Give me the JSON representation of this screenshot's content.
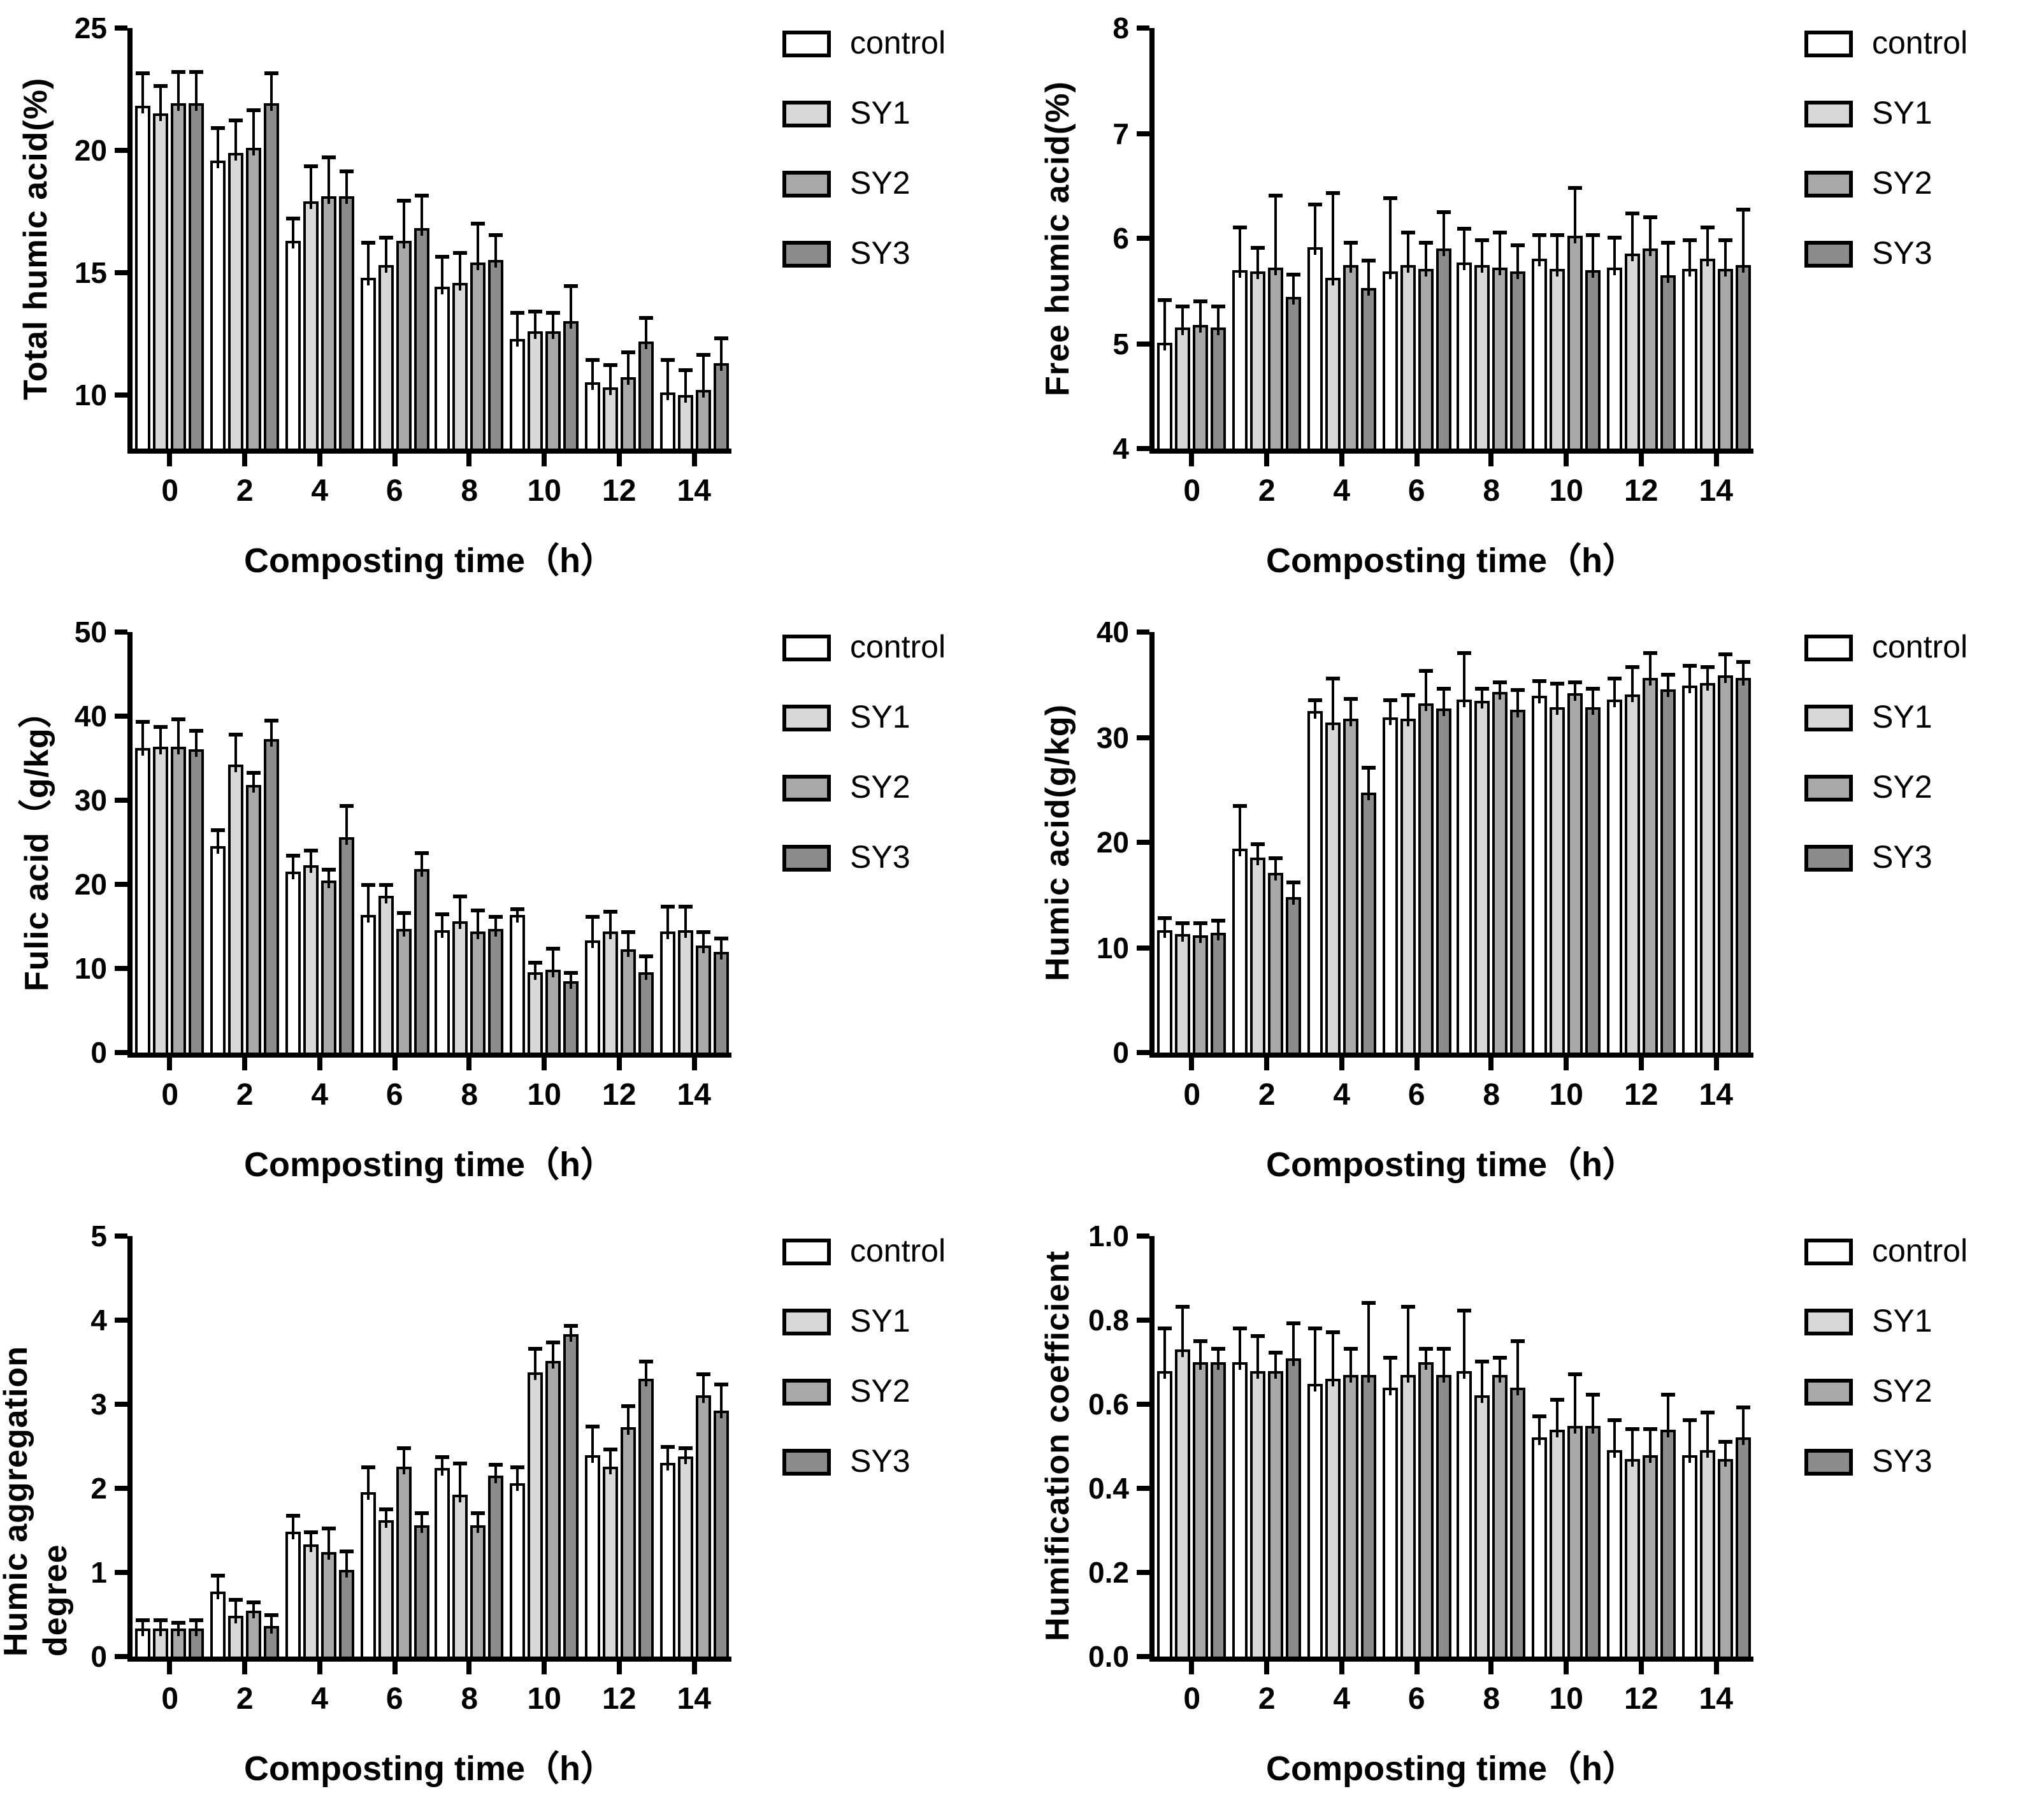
{
  "figure": {
    "background": "#ffffff",
    "xlabel": "Composting time（h）"
  },
  "legend": {
    "items": [
      "control",
      "SY1",
      "SY2",
      "SY3"
    ]
  },
  "series_colors": {
    "control": "#ffffff",
    "SY1": "#d8d8d8",
    "SY2": "#a9a9a9",
    "SY3": "#8c8c8c"
  },
  "chart_data": [
    {
      "type": "bar",
      "title": "",
      "ylabel": "Total humic acid(%)",
      "xlabel": "Composting time（h）",
      "categories": [
        "0",
        "2",
        "4",
        "6",
        "8",
        "10",
        "12",
        "14"
      ],
      "ylim": [
        7.8,
        25
      ],
      "yticks": [
        10,
        15,
        20,
        25
      ],
      "ytick_labels": [
        "10",
        "15",
        "20",
        "25"
      ],
      "grid": false,
      "legend_position": "right-top",
      "series": [
        {
          "name": "control",
          "color": "#ffffff",
          "values": [
            21.8,
            19.6,
            16.3,
            14.8,
            14.4,
            12.3,
            10.5,
            10.1
          ],
          "errors": [
            1.3,
            1.3,
            0.9,
            1.4,
            1.2,
            1.0,
            0.9,
            1.3
          ]
        },
        {
          "name": "SY1",
          "color": "#d8d8d8",
          "values": [
            21.5,
            19.9,
            17.9,
            15.3,
            14.6,
            12.6,
            10.3,
            10.0
          ],
          "errors": [
            1.1,
            1.3,
            1.4,
            1.1,
            1.2,
            0.8,
            0.9,
            1.0
          ]
        },
        {
          "name": "SY2",
          "color": "#a9a9a9",
          "values": [
            21.9,
            20.1,
            18.1,
            16.3,
            15.4,
            12.6,
            10.7,
            10.2
          ],
          "errors": [
            1.3,
            1.5,
            1.6,
            1.6,
            1.6,
            0.7,
            1.0,
            1.4
          ]
        },
        {
          "name": "SY3",
          "color": "#8c8c8c",
          "values": [
            21.9,
            21.9,
            18.1,
            16.8,
            15.5,
            13.0,
            12.2,
            11.3
          ],
          "errors": [
            1.3,
            1.2,
            1.0,
            1.3,
            1.0,
            1.4,
            0.9,
            1.0
          ]
        }
      ]
    },
    {
      "type": "bar",
      "title": "",
      "ylabel": "Free humic acid(%)",
      "xlabel": "Composting time（h）",
      "categories": [
        "0",
        "2",
        "4",
        "6",
        "8",
        "10",
        "12",
        "14"
      ],
      "ylim": [
        4,
        8
      ],
      "yticks": [
        4,
        5,
        6,
        7,
        8
      ],
      "ytick_labels": [
        "4",
        "5",
        "6",
        "7",
        "8"
      ],
      "grid": false,
      "legend_position": "right-top",
      "series": [
        {
          "name": "control",
          "color": "#ffffff",
          "values": [
            5.01,
            5.7,
            5.91,
            5.68,
            5.77,
            5.81,
            5.72,
            5.71
          ],
          "errors": [
            0.4,
            0.4,
            0.4,
            0.7,
            0.31,
            0.22,
            0.28,
            0.27
          ]
        },
        {
          "name": "SY1",
          "color": "#d8d8d8",
          "values": [
            5.15,
            5.68,
            5.63,
            5.74,
            5.74,
            5.71,
            5.86,
            5.81
          ],
          "errors": [
            0.2,
            0.22,
            0.79,
            0.31,
            0.24,
            0.31,
            0.37,
            0.29
          ]
        },
        {
          "name": "SY2",
          "color": "#a9a9a9",
          "values": [
            5.18,
            5.72,
            5.74,
            5.71,
            5.72,
            6.02,
            5.9,
            5.71
          ],
          "errors": [
            0.22,
            0.68,
            0.21,
            0.24,
            0.33,
            0.45,
            0.3,
            0.27
          ]
        },
        {
          "name": "SY3",
          "color": "#8c8c8c",
          "values": [
            5.15,
            5.44,
            5.53,
            5.9,
            5.68,
            5.7,
            5.65,
            5.74
          ],
          "errors": [
            0.2,
            0.21,
            0.25,
            0.34,
            0.25,
            0.32,
            0.3,
            0.53
          ]
        }
      ]
    },
    {
      "type": "bar",
      "title": "",
      "ylabel": "Fulic acid（g/kg）",
      "xlabel": "Composting time（h）",
      "categories": [
        "0",
        "2",
        "4",
        "6",
        "8",
        "10",
        "12",
        "14"
      ],
      "ylim": [
        0,
        50
      ],
      "yticks": [
        0,
        10,
        20,
        30,
        40,
        50
      ],
      "ytick_labels": [
        "0",
        "10",
        "20",
        "30",
        "40",
        "50"
      ],
      "grid": false,
      "legend_position": "right-top",
      "series": [
        {
          "name": "control",
          "color": "#ffffff",
          "values": [
            36.2,
            24.6,
            21.5,
            16.3,
            14.5,
            16.3,
            13.4,
            14.4
          ],
          "errors": [
            3.1,
            1.7,
            1.8,
            3.6,
            1.8,
            0.7,
            2.6,
            2.8
          ]
        },
        {
          "name": "SY1",
          "color": "#d8d8d8",
          "values": [
            36.4,
            34.3,
            22.2,
            18.6,
            15.6,
            9.6,
            14.4,
            14.6
          ],
          "errors": [
            2.3,
            3.5,
            1.8,
            1.2,
            2.9,
            1.0,
            2.3,
            2.7
          ]
        },
        {
          "name": "SY2",
          "color": "#a9a9a9",
          "values": [
            36.4,
            31.8,
            20.4,
            14.7,
            14.4,
            9.9,
            12.2,
            12.7
          ],
          "errors": [
            3.1,
            1.4,
            1.2,
            1.8,
            2.4,
            2.3,
            2.0,
            1.5
          ]
        },
        {
          "name": "SY3",
          "color": "#8c8c8c",
          "values": [
            36.0,
            37.2,
            25.6,
            21.8,
            14.7,
            8.5,
            9.5,
            12.0
          ],
          "errors": [
            2.2,
            2.2,
            3.6,
            1.9,
            1.3,
            0.9,
            1.9,
            1.5
          ]
        }
      ]
    },
    {
      "type": "bar",
      "title": "",
      "ylabel": "Humic acid(g/kg)",
      "xlabel": "Composting time（h）",
      "categories": [
        "0",
        "2",
        "4",
        "6",
        "8",
        "10",
        "12",
        "14"
      ],
      "ylim": [
        0,
        40
      ],
      "yticks": [
        0,
        10,
        20,
        30,
        40
      ],
      "ytick_labels": [
        "0",
        "10",
        "20",
        "30",
        "40"
      ],
      "grid": false,
      "legend_position": "right-top",
      "series": [
        {
          "name": "control",
          "color": "#ffffff",
          "values": [
            11.6,
            19.4,
            32.5,
            31.9,
            33.6,
            33.9,
            33.6,
            34.9
          ],
          "errors": [
            1.1,
            4.0,
            0.9,
            1.6,
            4.3,
            1.4,
            1.9,
            1.8
          ]
        },
        {
          "name": "SY1",
          "color": "#d8d8d8",
          "values": [
            11.3,
            18.6,
            31.4,
            31.8,
            33.4,
            32.9,
            34.1,
            35.1
          ],
          "errors": [
            1.0,
            1.2,
            4.1,
            2.1,
            1.2,
            2.1,
            2.5,
            1.5
          ]
        },
        {
          "name": "SY2",
          "color": "#a9a9a9",
          "values": [
            11.1,
            17.1,
            31.7,
            33.2,
            34.3,
            34.2,
            35.6,
            35.9
          ],
          "errors": [
            1.1,
            1.3,
            1.9,
            3.1,
            0.8,
            1.0,
            2.3,
            1.9
          ]
        },
        {
          "name": "SY3",
          "color": "#8c8c8c",
          "values": [
            11.4,
            14.8,
            24.7,
            32.7,
            32.6,
            32.9,
            34.5,
            35.6
          ],
          "errors": [
            1.1,
            1.3,
            2.3,
            1.9,
            1.8,
            1.6,
            1.4,
            1.5
          ]
        }
      ]
    },
    {
      "type": "bar",
      "title": "",
      "ylabel": "Humic aggregation degree",
      "xlabel": "Composting time（h）",
      "categories": [
        "0",
        "2",
        "4",
        "6",
        "8",
        "10",
        "12",
        "14"
      ],
      "ylim": [
        0,
        5
      ],
      "yticks": [
        0,
        1,
        2,
        3,
        4,
        5
      ],
      "ytick_labels": [
        "0",
        "1",
        "2",
        "3",
        "4",
        "5"
      ],
      "grid": false,
      "legend_position": "right-top",
      "series": [
        {
          "name": "control",
          "color": "#ffffff",
          "values": [
            0.33,
            0.78,
            1.48,
            1.96,
            2.24,
            2.06,
            2.39,
            2.31
          ],
          "errors": [
            0.09,
            0.17,
            0.19,
            0.28,
            0.12,
            0.19,
            0.33,
            0.18
          ]
        },
        {
          "name": "SY1",
          "color": "#d8d8d8",
          "values": [
            0.33,
            0.49,
            1.34,
            1.62,
            1.92,
            3.38,
            2.26,
            2.38
          ],
          "errors": [
            0.09,
            0.17,
            0.13,
            0.12,
            0.37,
            0.27,
            0.19,
            0.09
          ]
        },
        {
          "name": "SY2",
          "color": "#a9a9a9",
          "values": [
            0.33,
            0.54,
            1.24,
            2.26,
            1.56,
            3.52,
            2.73,
            3.1
          ],
          "errors": [
            0.07,
            0.09,
            0.28,
            0.21,
            0.14,
            0.21,
            0.24,
            0.25
          ]
        },
        {
          "name": "SY3",
          "color": "#8c8c8c",
          "values": [
            0.33,
            0.37,
            1.03,
            1.56,
            2.15,
            3.84,
            3.3,
            2.93
          ],
          "errors": [
            0.1,
            0.12,
            0.21,
            0.13,
            0.13,
            0.09,
            0.2,
            0.3
          ]
        }
      ]
    },
    {
      "type": "bar",
      "title": "",
      "ylabel": "Humification coefficient",
      "xlabel": "Composting time（h）",
      "categories": [
        "0",
        "2",
        "4",
        "6",
        "8",
        "10",
        "12",
        "14"
      ],
      "ylim": [
        0,
        1
      ],
      "yticks": [
        0,
        0.2,
        0.4,
        0.6,
        0.8,
        1.0
      ],
      "ytick_labels": [
        "0.0",
        "0.2",
        "0.4",
        "0.6",
        "0.8",
        "1.0"
      ],
      "grid": false,
      "legend_position": "right-top",
      "series": [
        {
          "name": "control",
          "color": "#ffffff",
          "values": [
            0.68,
            0.7,
            0.65,
            0.64,
            0.68,
            0.52,
            0.49,
            0.48
          ],
          "errors": [
            0.1,
            0.08,
            0.13,
            0.07,
            0.14,
            0.05,
            0.07,
            0.08
          ]
        },
        {
          "name": "SY1",
          "color": "#d8d8d8",
          "values": [
            0.73,
            0.68,
            0.66,
            0.67,
            0.62,
            0.54,
            0.47,
            0.49
          ],
          "errors": [
            0.1,
            0.08,
            0.11,
            0.16,
            0.08,
            0.07,
            0.07,
            0.09
          ]
        },
        {
          "name": "SY2",
          "color": "#a9a9a9",
          "values": [
            0.7,
            0.68,
            0.67,
            0.7,
            0.67,
            0.55,
            0.48,
            0.47
          ],
          "errors": [
            0.05,
            0.04,
            0.06,
            0.03,
            0.04,
            0.12,
            0.06,
            0.04
          ]
        },
        {
          "name": "SY3",
          "color": "#8c8c8c",
          "values": [
            0.7,
            0.71,
            0.67,
            0.67,
            0.64,
            0.55,
            0.54,
            0.52
          ],
          "errors": [
            0.03,
            0.08,
            0.17,
            0.06,
            0.11,
            0.07,
            0.08,
            0.07
          ]
        }
      ]
    }
  ]
}
